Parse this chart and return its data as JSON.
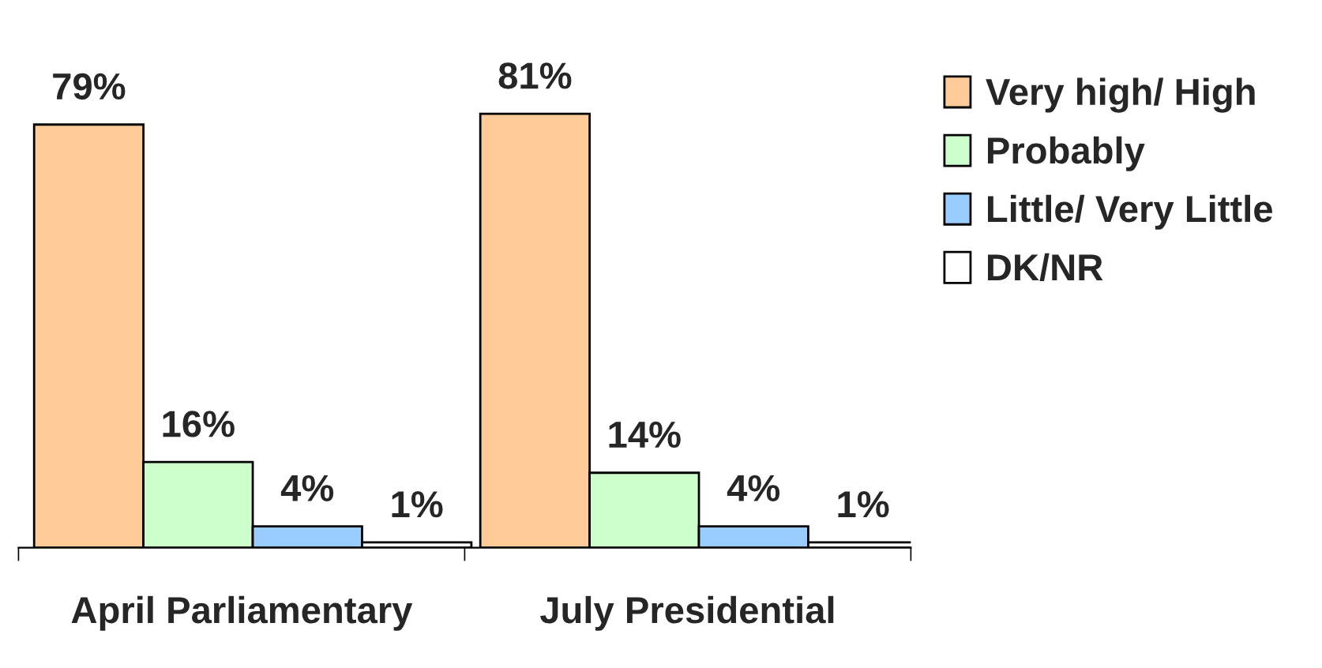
{
  "chart_data": {
    "type": "bar",
    "categories": [
      "April Parliamentary",
      "July Presidential"
    ],
    "series": [
      {
        "name": "Very high/ High",
        "color": "#ffcc99",
        "values": [
          79,
          81
        ],
        "value_labels": [
          "79%",
          "81%"
        ]
      },
      {
        "name": "Probably",
        "color": "#ccffcc",
        "values": [
          16,
          14
        ],
        "value_labels": [
          "16%",
          "14%"
        ]
      },
      {
        "name": "Little/ Very Little",
        "color": "#99ccff",
        "values": [
          4,
          4
        ],
        "value_labels": [
          "4%",
          "4%"
        ]
      },
      {
        "name": "DK/NR",
        "color": "#ffffff",
        "values": [
          1,
          1
        ],
        "value_labels": [
          "1%",
          "1%"
        ]
      }
    ],
    "legend": "right",
    "grid": false
  }
}
